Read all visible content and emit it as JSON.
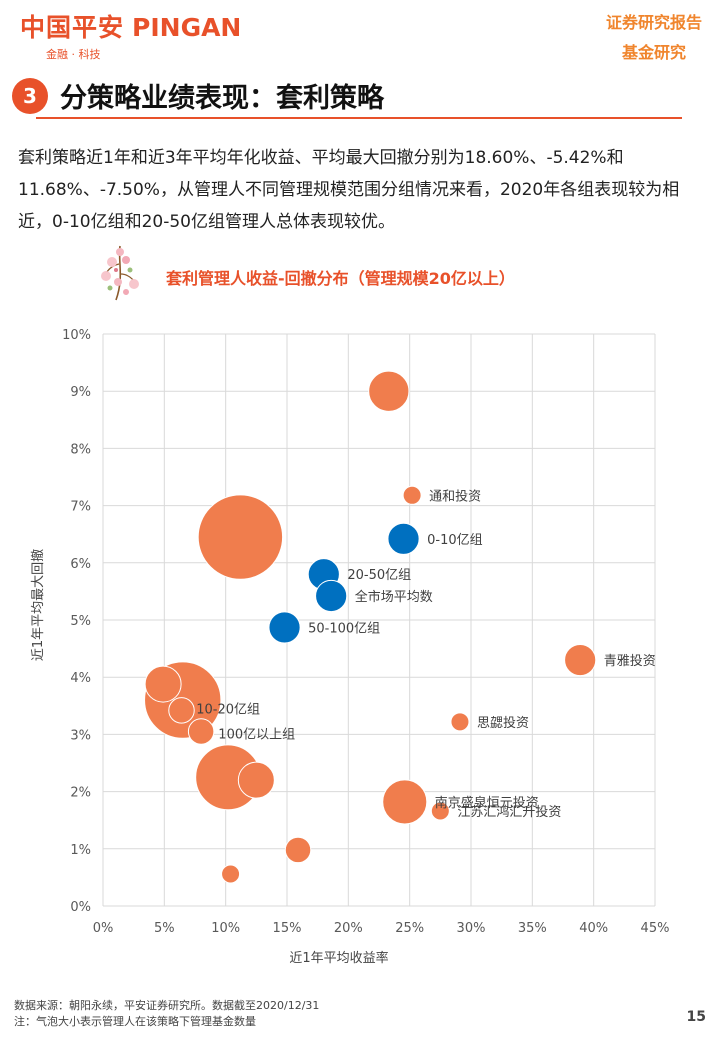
{
  "header": {
    "logo_cn": "中国平安",
    "logo_en": "PINGAN",
    "logo_sub": "金融 · 科技",
    "report_type": "证券研究报告",
    "report_sub": "基金研究"
  },
  "section": {
    "number": "3",
    "title": "分策略业绩表现：套利策略"
  },
  "paragraph": "套利策略近1年和近3年平均年化收益、平均最大回撤分别为18.60%、-5.42%和11.68%、-7.50%，从管理人不同管理规模范围分组情况来看，2020年各组表现较为相近，0-10亿组和20-50亿组管理人总体表现较优。",
  "chart_data": {
    "type": "scatter",
    "title": "套利管理人收益-回撤分布（管理规模20亿以上）",
    "xlabel": "近1年平均收益率",
    "ylabel": "近1年平均最大回撤",
    "xlim": [
      0,
      45
    ],
    "ylim": [
      0,
      10
    ],
    "x_ticks": [
      "0%",
      "5%",
      "10%",
      "15%",
      "20%",
      "25%",
      "30%",
      "35%",
      "40%",
      "45%"
    ],
    "y_ticks": [
      "0%",
      "1%",
      "2%",
      "3%",
      "4%",
      "5%",
      "6%",
      "7%",
      "8%",
      "9%",
      "10%"
    ],
    "grid": true,
    "note": "气泡大小表示管理人在该策略下管理基金数量",
    "colors": {
      "manager": "#F07D4D",
      "group": "#0070C0",
      "grid": "#D9D9D9"
    },
    "series": [
      {
        "points": [
          {
            "x": 23.3,
            "y": 9.0,
            "size": 5,
            "label": ""
          },
          {
            "x": 25.2,
            "y": 7.18,
            "size": 1,
            "label": "通和投资"
          },
          {
            "x": 11.2,
            "y": 6.45,
            "size": 22,
            "label": ""
          },
          {
            "x": 38.9,
            "y": 4.3,
            "size": 3,
            "label": "青雅投资"
          },
          {
            "x": 29.1,
            "y": 3.22,
            "size": 1,
            "label": "思勰投资"
          },
          {
            "x": 24.6,
            "y": 1.82,
            "size": 6,
            "label": "南京盛泉恒元投资"
          },
          {
            "x": 27.5,
            "y": 1.66,
            "size": 1,
            "label": "江苏汇鸿汇升投资"
          },
          {
            "x": 6.5,
            "y": 3.6,
            "size": 18,
            "label": ""
          },
          {
            "x": 4.9,
            "y": 3.88,
            "size": 4,
            "label": ""
          },
          {
            "x": 6.4,
            "y": 3.42,
            "size": 2,
            "label": ""
          },
          {
            "x": 8.0,
            "y": 3.05,
            "size": 2,
            "label": ""
          },
          {
            "x": 10.2,
            "y": 2.25,
            "size": 13,
            "label": ""
          },
          {
            "x": 12.5,
            "y": 2.2,
            "size": 4,
            "label": ""
          },
          {
            "x": 15.9,
            "y": 0.98,
            "size": 2,
            "label": ""
          },
          {
            "x": 10.4,
            "y": 0.56,
            "size": 1,
            "label": ""
          }
        ]
      },
      {
        "points": [
          {
            "x": 24.5,
            "y": 6.42,
            "size": 3,
            "label": "0-10亿组"
          },
          {
            "x": 18.0,
            "y": 5.8,
            "size": 3,
            "label": "20-50亿组"
          },
          {
            "x": 18.6,
            "y": 5.42,
            "size": 3,
            "label": "全市场平均数"
          },
          {
            "x": 14.8,
            "y": 4.87,
            "size": 3,
            "label": "50-100亿组"
          }
        ]
      }
    ],
    "annotations": [
      {
        "x": 7.6,
        "y": 3.45,
        "text": "10-20亿组"
      },
      {
        "x": 9.4,
        "y": 3.02,
        "text": "100亿以上组"
      }
    ]
  },
  "footer": {
    "source": "数据来源：朝阳永续，平安证券研究所。数据截至2020/12/31",
    "note": "注：气泡大小表示管理人在该策略下管理基金数量",
    "page": "15"
  }
}
